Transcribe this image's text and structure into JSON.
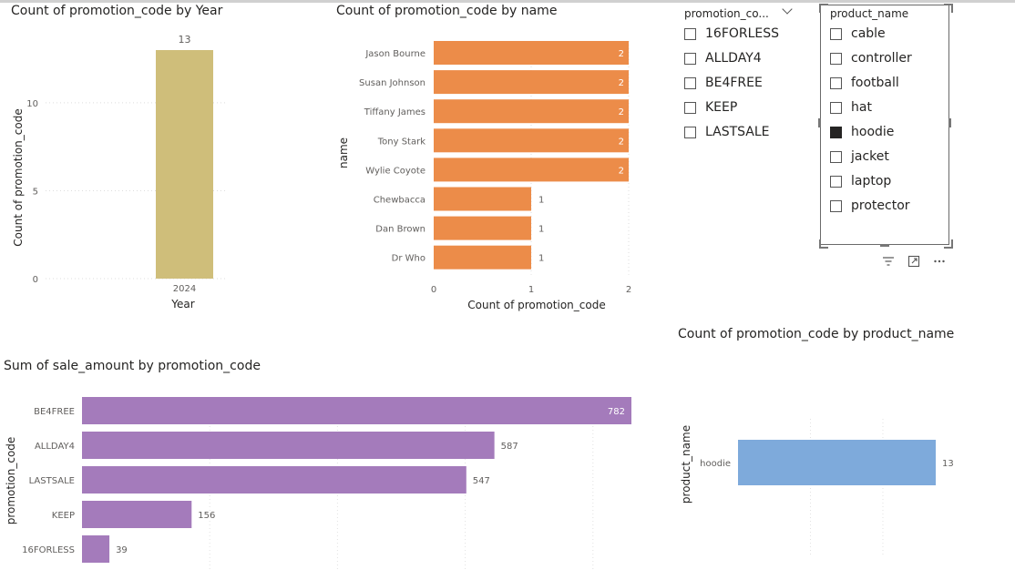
{
  "titles": {
    "year_chart": "Count of promotion_code by Year",
    "name_chart": "Count of promotion_code by name",
    "sale_chart": "Sum of sale_amount by promotion_code",
    "product_chart": "Count of promotion_code by product_name"
  },
  "slicers": {
    "promotion_code": {
      "header": "promotion_co...",
      "items": [
        {
          "label": "16FORLESS",
          "checked": false
        },
        {
          "label": "ALLDAY4",
          "checked": false
        },
        {
          "label": "BE4FREE",
          "checked": false
        },
        {
          "label": "KEEP",
          "checked": false
        },
        {
          "label": "LASTSALE",
          "checked": false
        }
      ]
    },
    "product_name": {
      "header": "product_name",
      "items": [
        {
          "label": "cable",
          "checked": false
        },
        {
          "label": "controller",
          "checked": false
        },
        {
          "label": "football",
          "checked": false
        },
        {
          "label": "hat",
          "checked": false
        },
        {
          "label": "hoodie",
          "checked": true
        },
        {
          "label": "jacket",
          "checked": false
        },
        {
          "label": "laptop",
          "checked": false
        },
        {
          "label": "protector",
          "checked": false
        }
      ]
    }
  },
  "chart_data": [
    {
      "type": "bar",
      "title": "Count of promotion_code by Year",
      "xlabel": "Year",
      "ylabel": "Count of promotion_code",
      "categories": [
        "2024"
      ],
      "values": [
        13
      ],
      "data_labels": [
        "13"
      ],
      "yticks": [
        "0",
        "5",
        "10"
      ],
      "ylim": [
        0,
        13
      ],
      "color": "#cfbe7a"
    },
    {
      "type": "bar",
      "orientation": "horizontal",
      "title": "Count of promotion_code by name",
      "xlabel": "Count of promotion_code",
      "ylabel": "name",
      "categories": [
        "Jason Bourne",
        "Susan Johnson",
        "Tiffany James",
        "Tony Stark",
        "Wylie Coyote",
        "Chewbacca",
        "Dan Brown",
        "Dr Who"
      ],
      "values": [
        2,
        2,
        2,
        2,
        2,
        1,
        1,
        1
      ],
      "data_labels": [
        "2",
        "2",
        "2",
        "2",
        "2",
        "1",
        "1",
        "1"
      ],
      "xticks": [
        "0",
        "1",
        "2"
      ],
      "xlim": [
        0,
        2
      ],
      "color": "#ec8c49"
    },
    {
      "type": "bar",
      "orientation": "horizontal",
      "title": "Sum of sale_amount by promotion_code",
      "xlabel": "",
      "ylabel": "promotion_code",
      "categories": [
        "BE4FREE",
        "ALLDAY4",
        "LASTSALE",
        "KEEP",
        "16FORLESS"
      ],
      "values": [
        782,
        587,
        547,
        156,
        39
      ],
      "data_labels": [
        "782",
        "587",
        "547",
        "156",
        "39"
      ],
      "xlim": [
        0,
        782
      ],
      "color": "#a47bbb"
    },
    {
      "type": "bar",
      "orientation": "horizontal",
      "title": "Count of promotion_code by product_name",
      "xlabel": "",
      "ylabel": "product_name",
      "categories": [
        "hoodie"
      ],
      "values": [
        13
      ],
      "data_labels": [
        "13"
      ],
      "xlim": [
        0,
        13
      ],
      "color": "#7eaadb"
    }
  ]
}
